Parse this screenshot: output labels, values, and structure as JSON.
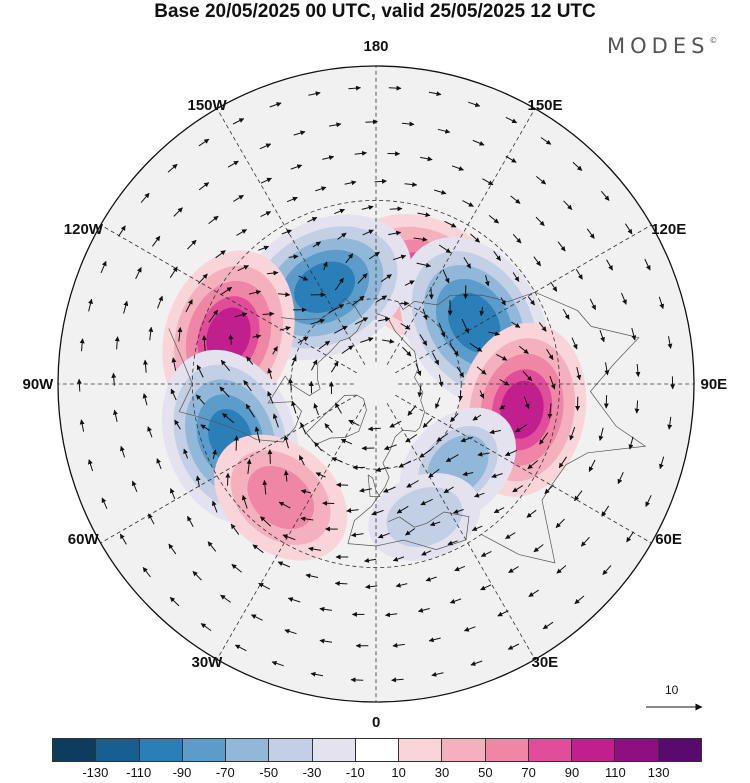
{
  "title": "Base 20/05/2025 00 UTC, valid 25/05/2025 12 UTC",
  "logo": {
    "text": "MODES",
    "mark": "©"
  },
  "map": {
    "projection": "north-polar-stereographic",
    "longitude_labels": [
      {
        "text": "180",
        "lon": 180
      },
      {
        "text": "150E",
        "lon": 150
      },
      {
        "text": "120E",
        "lon": 120
      },
      {
        "text": "90E",
        "lon": 90
      },
      {
        "text": "60E",
        "lon": 60
      },
      {
        "text": "30E",
        "lon": 30
      },
      {
        "text": "0",
        "lon": 0
      },
      {
        "text": "30W",
        "lon": -30
      },
      {
        "text": "60W",
        "lon": -60
      },
      {
        "text": "90W",
        "lon": -90
      },
      {
        "text": "120W",
        "lon": -120
      },
      {
        "text": "150W",
        "lon": -150
      }
    ],
    "centers": [
      {
        "id": "ridge-north-pacific",
        "sign": 1,
        "value": 85,
        "lon": 155,
        "lat": 50
      },
      {
        "id": "trough-gulf-alaska",
        "sign": -1,
        "value": -105,
        "lon": -152,
        "lat": 52
      },
      {
        "id": "ridge-western-na",
        "sign": 1,
        "value": 95,
        "lon": -108,
        "lat": 38
      },
      {
        "id": "trough-eastern-na",
        "sign": -1,
        "value": -100,
        "lon": -70,
        "lat": 38
      },
      {
        "id": "ridge-atlantic",
        "sign": 1,
        "value": 65,
        "lon": -40,
        "lat": 40
      },
      {
        "id": "trough-east-siberia",
        "sign": -1,
        "value": -105,
        "lon": 122,
        "lat": 50
      },
      {
        "id": "ridge-central-asia",
        "sign": 1,
        "value": 95,
        "lon": 80,
        "lat": 40
      },
      {
        "id": "trough-west-russia",
        "sign": -1,
        "value": -50,
        "lon": 45,
        "lat": 50
      },
      {
        "id": "trough-mediterranean",
        "sign": -1,
        "value": -35,
        "lon": 20,
        "lat": 42
      }
    ],
    "reference_vector": {
      "label": "10"
    }
  },
  "colorbar": {
    "ticks": [
      "-130",
      "-110",
      "-90",
      "-70",
      "-50",
      "-30",
      "-10",
      "10",
      "30",
      "50",
      "70",
      "90",
      "110",
      "130"
    ],
    "colors": [
      "#0d3c5e",
      "#155f93",
      "#2b7fb8",
      "#5b9ccb",
      "#92b8d9",
      "#c3cfe5",
      "#e4e2ef",
      "#ffffff",
      "#f9d5d9",
      "#f4b1bd",
      "#ef86a6",
      "#e24d9a",
      "#c21f8e",
      "#8f0f82",
      "#5a0a6e"
    ]
  }
}
